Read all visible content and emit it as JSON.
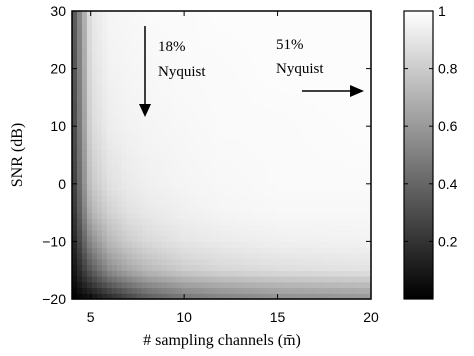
{
  "chart_data": {
    "type": "heatmap",
    "title": "",
    "xlabel": "# sampling channels (m̄)",
    "ylabel": "SNR (dB)",
    "xlim": [
      4,
      20
    ],
    "ylim": [
      -20,
      30
    ],
    "x_ticks": [
      "5",
      "10",
      "15",
      "20"
    ],
    "y_ticks": [
      "30",
      "20",
      "10",
      "0",
      "−10",
      "−20"
    ],
    "colormap": "gray",
    "colorbar": {
      "range": [
        0,
        1
      ],
      "ticks": [
        "1",
        "0.8",
        "0.6",
        "0.4",
        "0.2"
      ]
    },
    "annotations": [
      {
        "lines": [
          "18%",
          "Nyquist"
        ],
        "arrow": "down",
        "at_x": 8
      },
      {
        "lines": [
          "51%",
          "Nyquist"
        ],
        "arrow": "right",
        "at_x": 20
      }
    ],
    "description_of_values": "Values near 0 (black) at low channel count and low SNR, rising to near 1 (white) for larger channel counts and higher SNR.",
    "x": [
      4,
      5,
      6,
      7,
      8,
      10,
      12,
      15,
      20
    ],
    "y": [
      -20,
      -15,
      -10,
      -5,
      0,
      10,
      20,
      30
    ],
    "grid_values": [
      [
        0.0,
        0.05,
        0.15,
        0.25,
        0.35,
        0.45,
        0.5,
        0.55,
        0.58
      ],
      [
        0.05,
        0.35,
        0.55,
        0.65,
        0.72,
        0.8,
        0.84,
        0.87,
        0.89
      ],
      [
        0.1,
        0.55,
        0.72,
        0.8,
        0.85,
        0.9,
        0.92,
        0.94,
        0.95
      ],
      [
        0.15,
        0.7,
        0.82,
        0.88,
        0.91,
        0.94,
        0.96,
        0.97,
        0.97
      ],
      [
        0.18,
        0.78,
        0.88,
        0.92,
        0.94,
        0.96,
        0.97,
        0.98,
        0.98
      ],
      [
        0.22,
        0.85,
        0.93,
        0.95,
        0.96,
        0.97,
        0.98,
        0.98,
        0.99
      ],
      [
        0.25,
        0.88,
        0.95,
        0.96,
        0.97,
        0.98,
        0.98,
        0.99,
        0.99
      ],
      [
        0.28,
        0.9,
        0.96,
        0.97,
        0.98,
        0.98,
        0.99,
        0.99,
        0.99
      ]
    ]
  }
}
